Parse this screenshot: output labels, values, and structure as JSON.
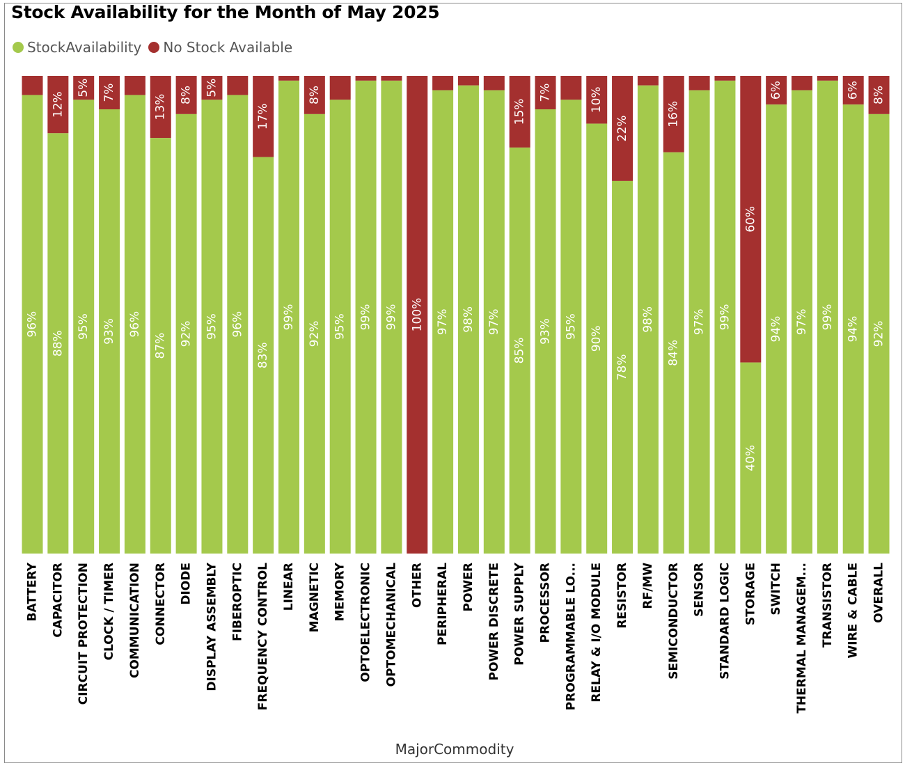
{
  "title": "Stock Availability for the Month of May 2025",
  "colors": {
    "available": "#a4c94c",
    "unavailable": "#a4302f",
    "label_text": "#ffffff"
  },
  "legend": [
    {
      "label": "StockAvailability",
      "color": "#a4c94c"
    },
    {
      "label": "No Stock Available",
      "color": "#a4302f"
    }
  ],
  "chart_data": {
    "type": "bar",
    "stacked": true,
    "orientation": "vertical",
    "normalized": "100%",
    "xlabel": "MajorCommodity",
    "ylabel": "",
    "legend_position": "top-left",
    "grid": false,
    "categories": [
      "BATTERY",
      "CAPACITOR",
      "CIRCUIT PROTECTION",
      "CLOCK / TIMER",
      "COMMUNICATION",
      "CONNECTOR",
      "DIODE",
      "DISPLAY ASSEMBLY",
      "FIBEROPTIC",
      "FREQUENCY CONTROL",
      "LINEAR",
      "MAGNETIC",
      "MEMORY",
      "OPTOELECTRONIC",
      "OPTOMECHANICAL",
      "OTHER",
      "PERIPHERAL",
      "POWER",
      "POWER DISCRETE",
      "POWER SUPPLY",
      "PROCESSOR",
      "PROGRAMMABLE LO...",
      "RELAY & I/O MODULE",
      "RESISTOR",
      "RF/MW",
      "SEMICONDUCTOR",
      "SENSOR",
      "STANDARD LOGIC",
      "STORAGE",
      "SWITCH",
      "THERMAL MANAGEM...",
      "TRANSISTOR",
      "WIRE & CABLE",
      "OVERALL"
    ],
    "series": [
      {
        "name": "StockAvailability",
        "values": [
          96,
          88,
          95,
          93,
          96,
          87,
          92,
          95,
          96,
          83,
          99,
          92,
          95,
          99,
          99,
          0,
          97,
          98,
          97,
          85,
          93,
          95,
          90,
          78,
          98,
          84,
          97,
          99,
          40,
          94,
          97,
          99,
          94,
          92
        ],
        "labels": [
          "96%",
          "88%",
          "95%",
          "93%",
          "96%",
          "87%",
          "92%",
          "95%",
          "96%",
          "83%",
          "99%",
          "92%",
          "95%",
          "99%",
          "99%",
          "",
          "97%",
          "98%",
          "97%",
          "85%",
          "93%",
          "95%",
          "90%",
          "78%",
          "98%",
          "84%",
          "97%",
          "99%",
          "40%",
          "94%",
          "97%",
          "99%",
          "94%",
          "92%"
        ]
      },
      {
        "name": "No Stock Available",
        "values": [
          4,
          12,
          5,
          7,
          4,
          13,
          8,
          5,
          4,
          17,
          1,
          8,
          5,
          1,
          1,
          100,
          3,
          2,
          3,
          15,
          7,
          5,
          10,
          22,
          2,
          16,
          3,
          1,
          60,
          6,
          3,
          1,
          6,
          8
        ],
        "labels": [
          "",
          "12%",
          "5%",
          "7%",
          "",
          "13%",
          "8%",
          "5%",
          "",
          "17%",
          "",
          "8%",
          "",
          "",
          "",
          "100%",
          "",
          "",
          "",
          "15%",
          "7%",
          "",
          "10%",
          "22%",
          "",
          "16%",
          "",
          "",
          "60%",
          "6%",
          "",
          "",
          "6%",
          "8%"
        ]
      }
    ]
  }
}
